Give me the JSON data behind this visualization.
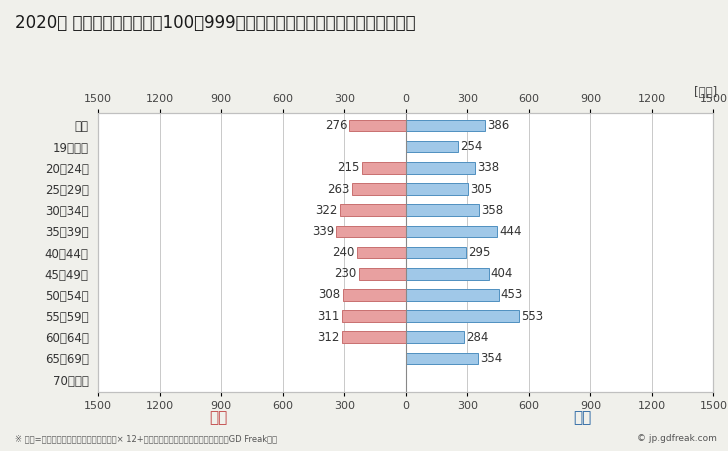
{
  "title": "2020年 民間企業（従業者数100〜999人）フルタイム労働者の男女別平均年収",
  "unit_label": "[万円]",
  "categories": [
    "全体",
    "19歳以下",
    "20〜24歳",
    "25〜29歳",
    "30〜34歳",
    "35〜39歳",
    "40〜44歳",
    "45〜49歳",
    "50〜54歳",
    "55〜59歳",
    "60〜64歳",
    "65〜69歳",
    "70歳以上"
  ],
  "female_values": [
    276,
    0,
    215,
    263,
    322,
    339,
    240,
    230,
    308,
    311,
    312,
    0,
    0
  ],
  "male_values": [
    386,
    254,
    338,
    305,
    358,
    444,
    295,
    404,
    453,
    553,
    284,
    354,
    0
  ],
  "female_color": "#e8a0a0",
  "male_color": "#a0c8e8",
  "female_border_color": "#c87070",
  "male_border_color": "#5090c0",
  "female_label": "女性",
  "male_label": "男性",
  "female_label_color": "#c04040",
  "male_label_color": "#2060a0",
  "grid_color": "#c0c0c0",
  "xlim": 1500,
  "footnote": "※ 年収=「きまって支給する現金給与額」× 12+「年間賞与その他特別給与額」としてGD Freak推計",
  "copyright": "© jp.gdfreak.com",
  "background_color": "#f0f0eb",
  "plot_background_color": "#ffffff",
  "title_fontsize": 12,
  "label_fontsize": 8.5,
  "tick_fontsize": 8,
  "bar_height": 0.55
}
